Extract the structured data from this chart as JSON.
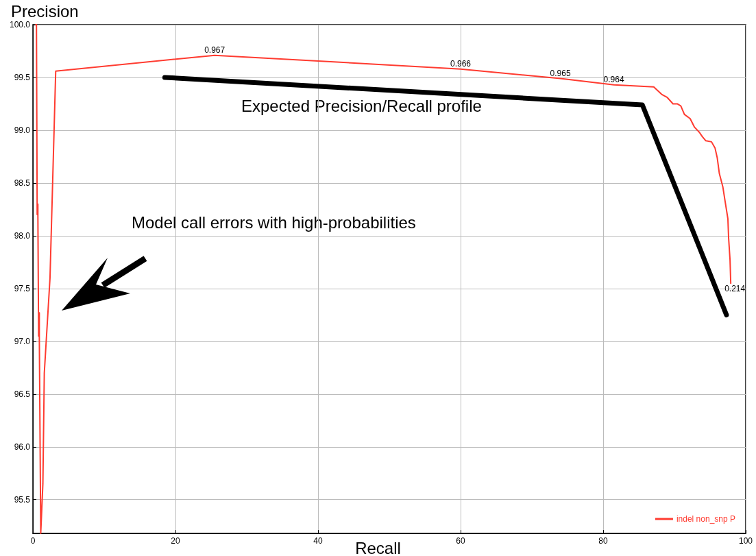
{
  "chart_data": {
    "type": "line",
    "xlabel": "Recall",
    "ylabel": "Precision",
    "xlim": [
      0,
      100
    ],
    "xticks": [
      0,
      20,
      40,
      60,
      80,
      100
    ],
    "ylim": [
      95.18,
      100
    ],
    "yticks": [
      {
        "value": 95.5,
        "label": "95.5"
      },
      {
        "value": 96,
        "label": "96.0"
      },
      {
        "value": 96.5,
        "label": "96.5"
      },
      {
        "value": 97,
        "label": "97.0"
      },
      {
        "value": 97.5,
        "label": "97.5"
      },
      {
        "value": 98,
        "label": "98.0"
      },
      {
        "value": 98.5,
        "label": "98.5"
      },
      {
        "value": 99,
        "label": "99.0"
      },
      {
        "value": 99.5,
        "label": "99.5"
      },
      {
        "value": 100,
        "label": "100.0"
      }
    ],
    "grid": true,
    "legend": "bottom right",
    "marker": "none",
    "line_style": "solid",
    "series": [
      {
        "name": "indel non_snp P",
        "color": "#ff3b30",
        "x": [
          0.4,
          0.5,
          0.6,
          0.7,
          0.7,
          0.8,
          0.9,
          0.9,
          1.1,
          1.4,
          1.6,
          2.4,
          3.2,
          25.5,
          60,
          74,
          81.5,
          87.1,
          88.2,
          89.0,
          89.8,
          90.4,
          90.9,
          91.4,
          92.2,
          92.8,
          93.5,
          93.9,
          94.4,
          95.2,
          95.7,
          96.0,
          96.3,
          96.8,
          97.1,
          97.5,
          97.6,
          97.8,
          97.9
        ],
        "values": [
          100.0,
          100.0,
          98.2,
          98.3,
          98.2,
          97.05,
          97.27,
          97.05,
          95.18,
          95.65,
          96.7,
          97.6,
          99.56,
          99.71,
          99.58,
          99.49,
          99.43,
          99.41,
          99.34,
          99.31,
          99.25,
          99.25,
          99.23,
          99.15,
          99.11,
          99.03,
          98.98,
          98.94,
          98.9,
          98.89,
          98.83,
          98.74,
          98.59,
          98.46,
          98.33,
          98.16,
          97.98,
          97.77,
          97.55
        ]
      },
      {
        "color": "#000000",
        "x": [
          18.5,
          85.5,
          97.3
        ],
        "values": [
          99.5,
          99.24,
          97.25
        ]
      }
    ],
    "annotations": [
      {
        "text": "0.967",
        "x": 25.5,
        "y": 99.71
      },
      {
        "text": "0.966",
        "x": 60,
        "y": 99.58
      },
      {
        "text": "0.965",
        "x": 74,
        "y": 99.49
      },
      {
        "text": "0.964",
        "x": 81.5,
        "y": 99.43
      },
      {
        "text": "0.214",
        "x": 97.9,
        "y": 97.55
      },
      "Expected Precision/Recall profile",
      "Model call errors with high-probabilities"
    ]
  }
}
